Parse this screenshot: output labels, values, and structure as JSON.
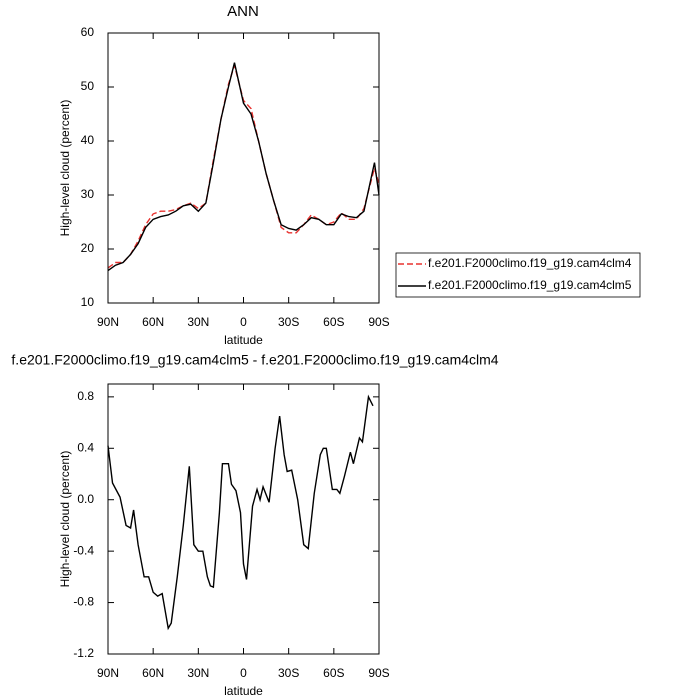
{
  "chart_data": [
    {
      "type": "line",
      "title": "ANN",
      "xlabel": "latitude",
      "ylabel": "High-level cloud (percent)",
      "x": [
        90,
        85,
        80,
        75,
        70,
        65,
        60,
        55,
        50,
        45,
        40,
        35,
        30,
        25,
        20,
        15,
        10,
        6,
        0,
        -5,
        -10,
        -15,
        -20,
        -25,
        -30,
        -35,
        -40,
        -45,
        -50,
        -55,
        -60,
        -65,
        -70,
        -75,
        -80,
        -87,
        -90
      ],
      "series": [
        {
          "name": "f.e201.F2000climo.f19_g19.cam4clm4",
          "color": "#e8322f",
          "dash": true,
          "values": [
            16.5,
            17.5,
            17.5,
            19,
            21.5,
            24.5,
            26.5,
            27,
            27,
            27.3,
            28,
            28.5,
            27.5,
            28.5,
            36.5,
            44,
            50.5,
            54,
            47.5,
            46,
            40,
            34,
            29,
            24,
            23,
            23,
            24.5,
            26.3,
            25.5,
            24.5,
            25,
            26.7,
            25.5,
            25.5,
            27.5,
            35,
            32
          ]
        },
        {
          "name": "f.e201.F2000climo.f19_g19.cam4clm5",
          "color": "#000000",
          "dash": false,
          "values": [
            16,
            17,
            17.5,
            19,
            21,
            24,
            25.5,
            26,
            26.3,
            27,
            28,
            28.3,
            27,
            28.5,
            36,
            44,
            50,
            54.5,
            47,
            45,
            40,
            34,
            29,
            24.5,
            23.8,
            23.5,
            24.5,
            25.8,
            25.5,
            24.5,
            24.5,
            26.5,
            26,
            25.8,
            27,
            36,
            30
          ]
        }
      ],
      "xlim": [
        90,
        -90
      ],
      "xticks": [
        {
          "value": 90,
          "label": "90N"
        },
        {
          "value": 60,
          "label": "60N"
        },
        {
          "value": 30,
          "label": "30N"
        },
        {
          "value": 0,
          "label": "0"
        },
        {
          "value": -30,
          "label": "30S"
        },
        {
          "value": -60,
          "label": "60S"
        },
        {
          "value": -90,
          "label": "90S"
        }
      ],
      "ylim": [
        10,
        60
      ],
      "yticks": [
        10,
        20,
        30,
        40,
        50,
        60
      ],
      "legend": "right"
    },
    {
      "type": "line",
      "title": "f.e201.F2000climo.f19_g19.cam4clm5 - f.e201.F2000climo.f19_g19.cam4clm4",
      "xlabel": "latitude",
      "ylabel": "High-level cloud (percent)",
      "x": [
        90,
        87,
        82,
        78,
        75,
        73,
        70,
        66,
        63,
        60,
        57,
        54,
        50,
        48,
        44,
        40,
        36,
        33,
        30,
        27,
        24,
        22,
        20,
        16,
        14,
        10,
        8,
        5,
        2,
        0,
        -2,
        -6,
        -9,
        -11,
        -13,
        -17,
        -21,
        -24,
        -27,
        -29,
        -32,
        -36,
        -40,
        -43,
        -47,
        -51,
        -53,
        -55,
        -59,
        -62,
        -64,
        -67,
        -71,
        -73,
        -77,
        -79,
        -83,
        -86
      ],
      "series": [
        {
          "color": "#000000",
          "dash": false,
          "values": [
            0.42,
            0.13,
            0.02,
            -0.2,
            -0.22,
            -0.08,
            -0.35,
            -0.6,
            -0.6,
            -0.72,
            -0.75,
            -0.73,
            -1.0,
            -0.96,
            -0.6,
            -0.2,
            0.26,
            -0.35,
            -0.4,
            -0.4,
            -0.6,
            -0.67,
            -0.68,
            -0.1,
            0.28,
            0.28,
            0.12,
            0.07,
            -0.1,
            -0.5,
            -0.62,
            -0.05,
            0.08,
            0.0,
            0.1,
            -0.02,
            0.4,
            0.65,
            0.35,
            0.22,
            0.23,
            0.0,
            -0.35,
            -0.38,
            0.05,
            0.35,
            0.4,
            0.4,
            0.08,
            0.08,
            0.05,
            0.18,
            0.37,
            0.28,
            0.48,
            0.45,
            0.8,
            0.73
          ]
        }
      ],
      "xlim": [
        90,
        -90
      ],
      "xticks": [
        {
          "value": 90,
          "label": "90N"
        },
        {
          "value": 60,
          "label": "60N"
        },
        {
          "value": 30,
          "label": "30N"
        },
        {
          "value": 0,
          "label": "0"
        },
        {
          "value": -30,
          "label": "30S"
        },
        {
          "value": -60,
          "label": "60S"
        },
        {
          "value": -90,
          "label": "90S"
        }
      ],
      "ylim": [
        -1.2,
        0.9
      ],
      "yticks": [
        -1.2,
        -0.8,
        -0.4,
        {
          "value": 0,
          "label": "0.0"
        },
        0.4,
        0.8
      ]
    }
  ]
}
